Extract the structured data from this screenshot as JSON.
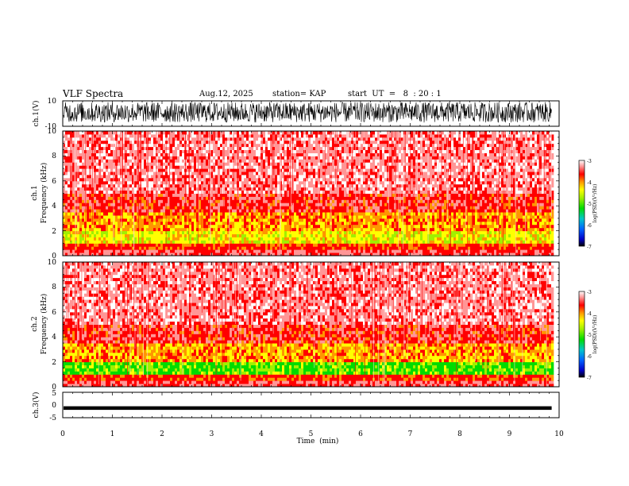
{
  "header": {
    "title": "VLF Spectra",
    "date": "Aug.12, 2025",
    "station": "station= KAP",
    "start": "start  UT  =   8  : 20 : 1"
  },
  "colors": {
    "spectrogram": [
      "#000000",
      "#0000c8",
      "#0064ff",
      "#00c8c8",
      "#00dc00",
      "#a0f000",
      "#ffff00",
      "#ff9600",
      "#ff0000",
      "#ff9696",
      "#ffffff"
    ]
  },
  "chart_data": [
    {
      "type": "line",
      "name": "ch1-waveform",
      "ylabel": "ch.1(V)",
      "ylim": [
        -10,
        10
      ],
      "yticks": [
        "10",
        "-10"
      ],
      "x_range_min": [
        0,
        9.85
      ],
      "description_trace": "dense noisy waveform spanning roughly -8 to +9 V"
    },
    {
      "type": "heatmap",
      "name": "ch1-spectrogram",
      "ylabel_top": "ch.1",
      "ylabel": "Frequency  (kHz)",
      "ylim": [
        0,
        10
      ],
      "yticks": [
        "0",
        "2",
        "4",
        "6",
        "8",
        "10"
      ],
      "colorbar_label": "log(PSD)(V²/Hz)",
      "colorbar_range": [
        -7,
        -3
      ],
      "colorbar_ticks": [
        "-3",
        "-4",
        "-5",
        "-6",
        "-7"
      ],
      "band_kHz": [
        0,
        3.5
      ]
    },
    {
      "type": "heatmap",
      "name": "ch2-spectrogram",
      "ylabel_top": "ch.2",
      "ylabel": "Frequency  (kHz)",
      "ylim": [
        0,
        10
      ],
      "yticks": [
        "0",
        "2",
        "4",
        "6",
        "8",
        "10"
      ],
      "colorbar_label": "log(PSD)(V²/Hz)",
      "colorbar_range": [
        -7,
        -3
      ],
      "colorbar_ticks": [
        "-3",
        "-4",
        "-5",
        "-6",
        "-7"
      ],
      "band_kHz": [
        0,
        3.5
      ]
    },
    {
      "type": "line",
      "name": "ch3-waveform",
      "ylabel": "ch.3(V)",
      "ylim": [
        -5,
        5
      ],
      "yticks": [
        "5",
        "0",
        "-5"
      ],
      "x_range_min": [
        0,
        9.85
      ],
      "level_V": -1.2
    }
  ],
  "xaxis": {
    "label": "Time  (min)",
    "range": [
      0,
      10
    ],
    "ticks": [
      "0",
      "1",
      "2",
      "3",
      "4",
      "5",
      "6",
      "7",
      "8",
      "9",
      "10"
    ]
  }
}
